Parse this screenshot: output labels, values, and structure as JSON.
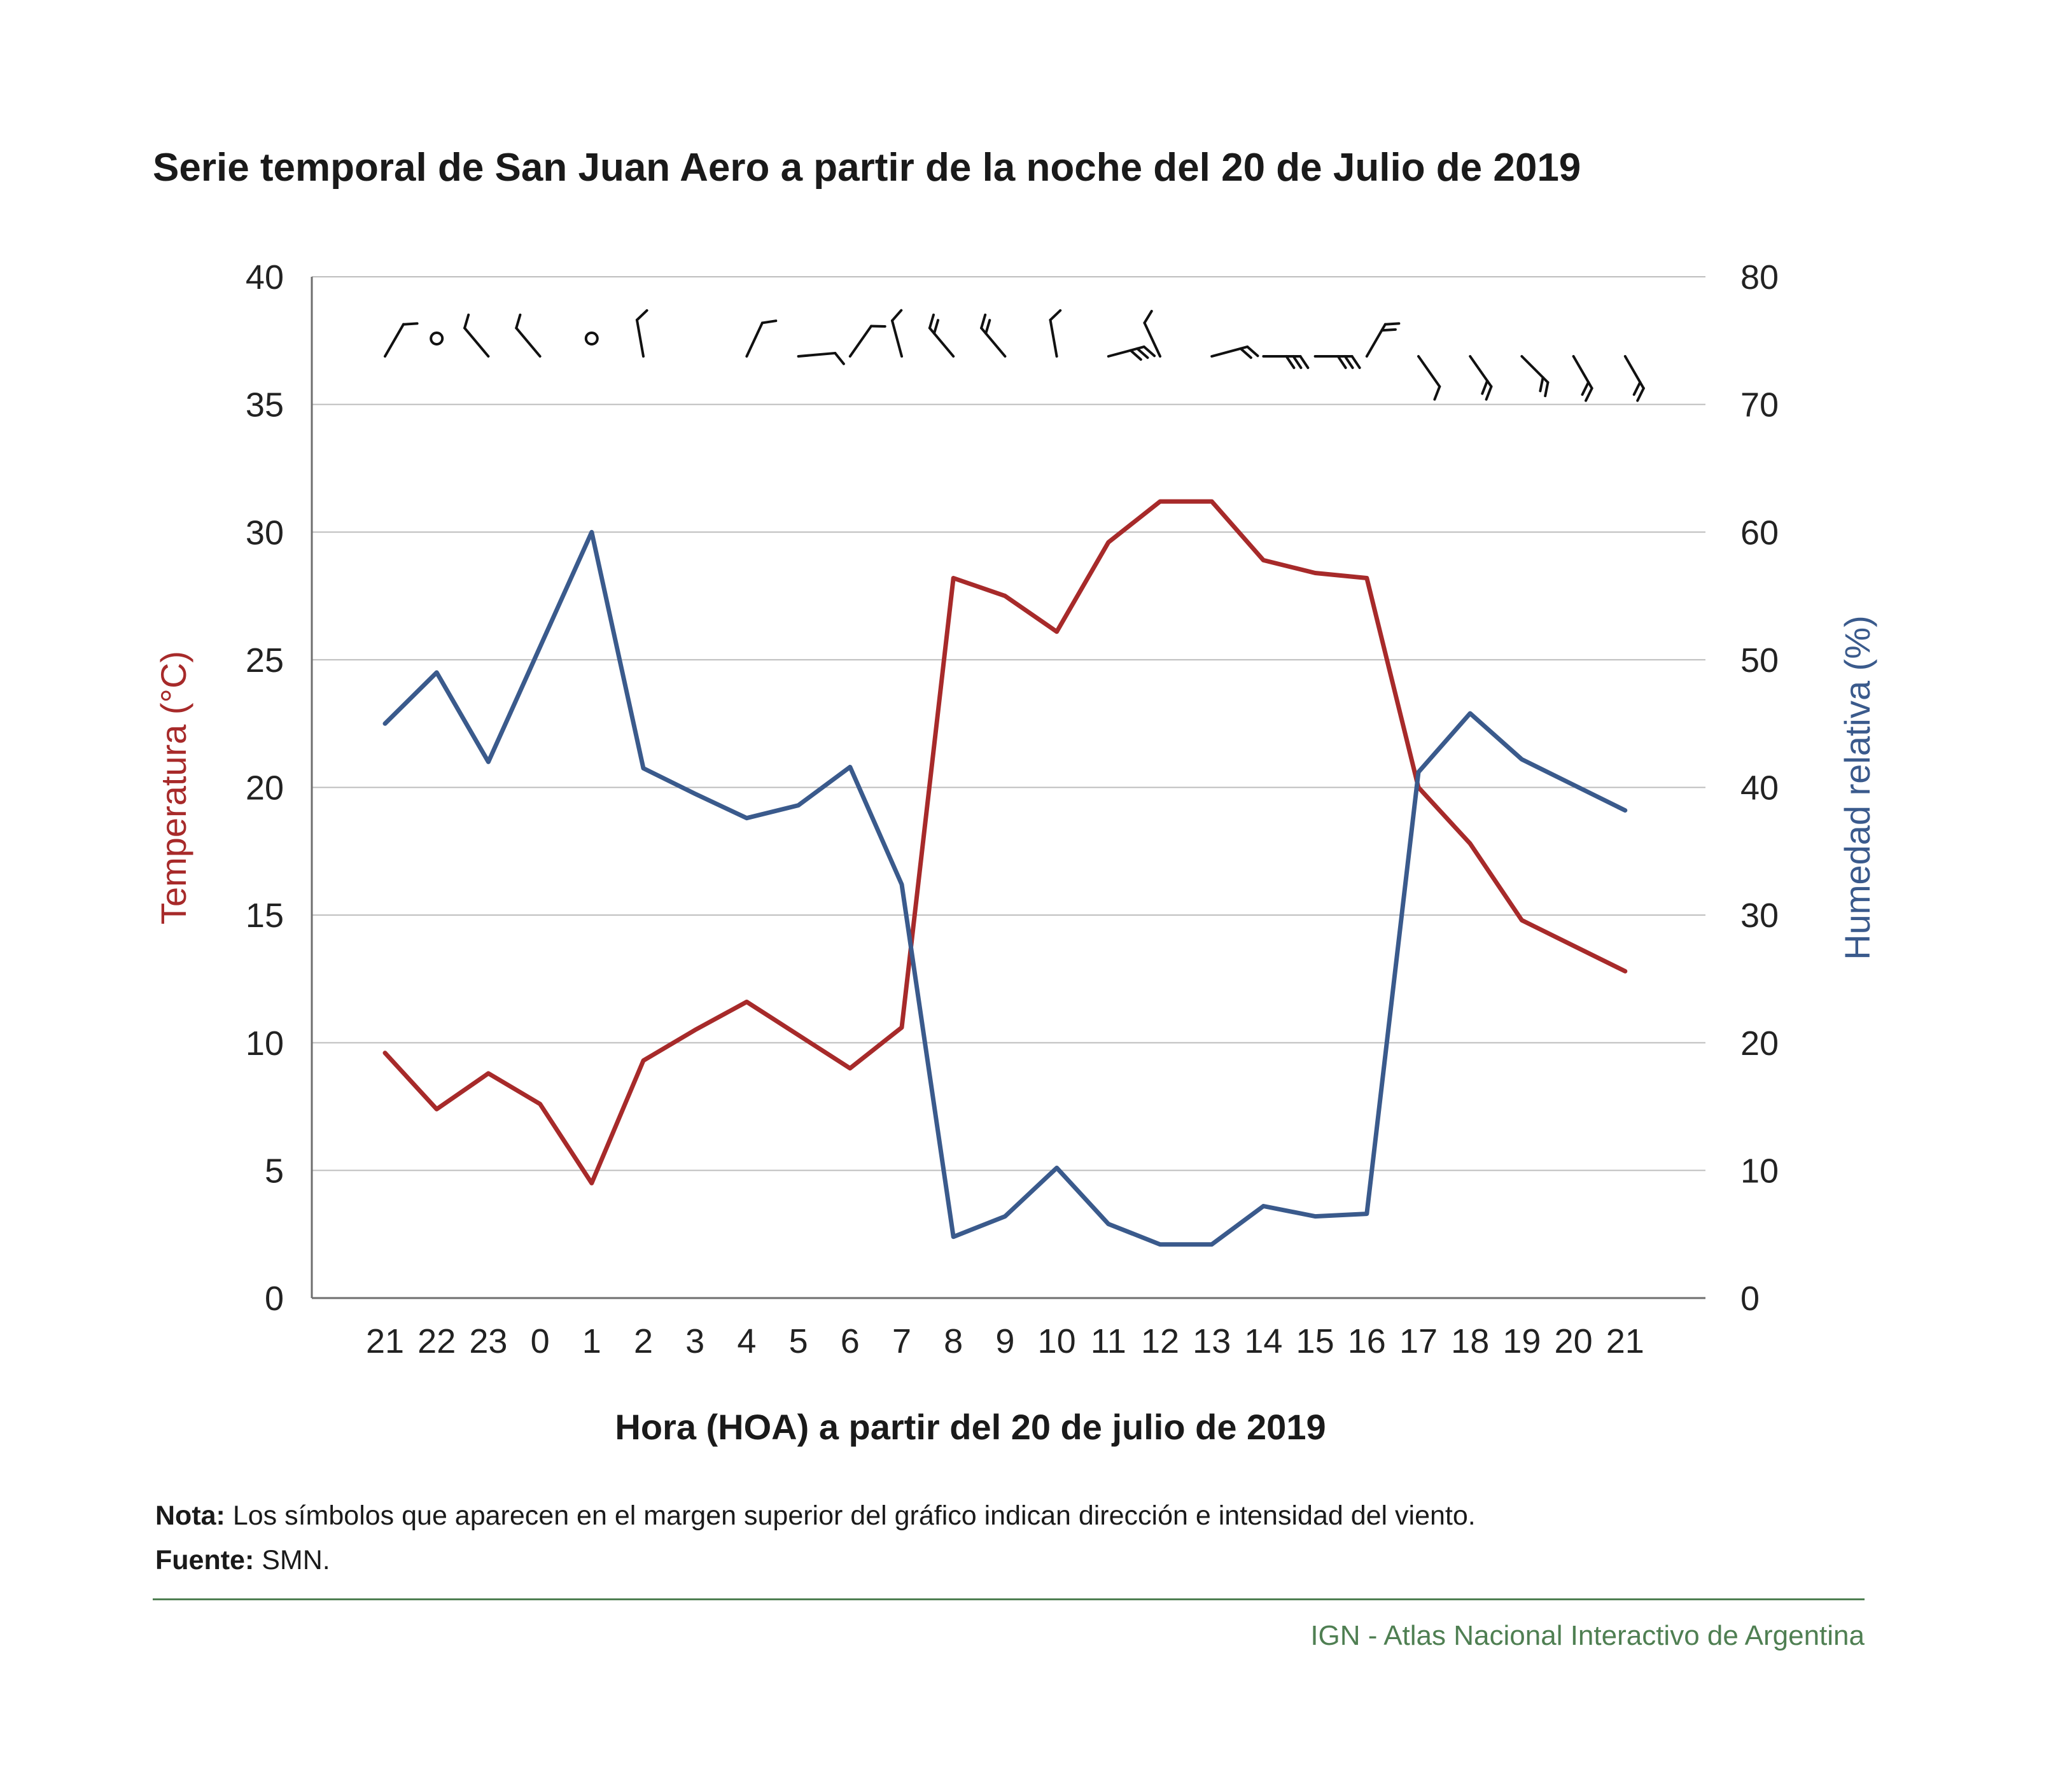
{
  "title": "Serie temporal de San Juan Aero a partir de la noche del 20 de Julio de 2019",
  "note_label": "Nota:",
  "note_text": "Los símbolos que aparecen en el margen superior del gráfico indican dirección e intensidad del viento.",
  "source_label": "Fuente:",
  "source_text": "SMN.",
  "credit": "IGN - Atlas Nacional Interactivo de Argentina",
  "colors": {
    "temperature": "#a72a2a",
    "humidity": "#3a5a8c",
    "grid": "#bdbdbd",
    "axis": "#6e6e6e",
    "credit": "#4f7f52"
  },
  "chart_data": {
    "type": "line",
    "title": "Serie temporal de San Juan Aero a partir de la noche del 20 de Julio de 2019",
    "xlabel": "Hora (HOA) a partir del 20 de julio de 2019",
    "ylabel_left": "Temperatura (°C)",
    "ylabel_right": "Humedad relativa (%)",
    "categories": [
      "21",
      "22",
      "23",
      "0",
      "1",
      "2",
      "3",
      "4",
      "5",
      "6",
      "7",
      "8",
      "9",
      "10",
      "11",
      "12",
      "13",
      "14",
      "15",
      "16",
      "17",
      "18",
      "19",
      "20",
      "21"
    ],
    "ylim_left": [
      0,
      40
    ],
    "yticks_left": [
      0,
      5,
      10,
      15,
      20,
      25,
      30,
      35,
      40
    ],
    "ylim_right": [
      0,
      80
    ],
    "yticks_right": [
      0,
      10,
      20,
      30,
      40,
      50,
      60,
      70,
      80
    ],
    "grid": true,
    "series": [
      {
        "name": "Temperatura (°C)",
        "axis": "left",
        "color": "#a72a2a",
        "values": [
          9.6,
          7.4,
          8.8,
          7.6,
          4.5,
          9.3,
          10.5,
          11.6,
          10.3,
          9.0,
          10.6,
          28.2,
          27.5,
          26.1,
          29.6,
          31.2,
          31.2,
          28.9,
          28.4,
          28.2,
          20.0,
          17.8,
          14.8,
          13.8,
          12.8
        ]
      },
      {
        "name": "Humedad relativa (%)",
        "axis": "right",
        "color": "#3a5a8c",
        "values": [
          45,
          49,
          42,
          51,
          60,
          41.5,
          39.5,
          37.6,
          38.6,
          41.6,
          32.4,
          4.8,
          6.4,
          10.2,
          5.8,
          4.2,
          4.2,
          7.2,
          6.4,
          6.6,
          41.2,
          45.8,
          42.2,
          40.2,
          38.2
        ]
      }
    ],
    "wind_symbols": [
      {
        "dir": 30,
        "barbs": 1
      },
      {
        "calm": true
      },
      {
        "dir": 320,
        "barbs": 1
      },
      {
        "dir": 320,
        "barbs": 1
      },
      {
        "calm": true
      },
      {
        "dir": 350,
        "barbs": 1
      },
      {
        "missing": true
      },
      {
        "dir": 25,
        "barbs": 1
      },
      {
        "dir": 85,
        "barbs": 1
      },
      {
        "dir": 35,
        "barbs": 1
      },
      {
        "dir": 345,
        "barbs": 1
      },
      {
        "dir": 320,
        "barbs": 2
      },
      {
        "dir": 320,
        "barbs": 2
      },
      {
        "dir": 350,
        "barbs": 1
      },
      {
        "dir": 75,
        "barbs": 3
      },
      {
        "dir": 335,
        "barbs": 1
      },
      {
        "dir": 75,
        "barbs": 2
      },
      {
        "dir": 90,
        "barbs": 3
      },
      {
        "dir": 90,
        "barbs": 3
      },
      {
        "dir": 30,
        "barbs": 2
      },
      {
        "dir": 145,
        "barbs": 1
      },
      {
        "dir": 145,
        "barbs": 2
      },
      {
        "dir": 135,
        "barbs": 2
      },
      {
        "dir": 150,
        "barbs": 2
      },
      {
        "dir": 150,
        "barbs": 2
      }
    ]
  }
}
